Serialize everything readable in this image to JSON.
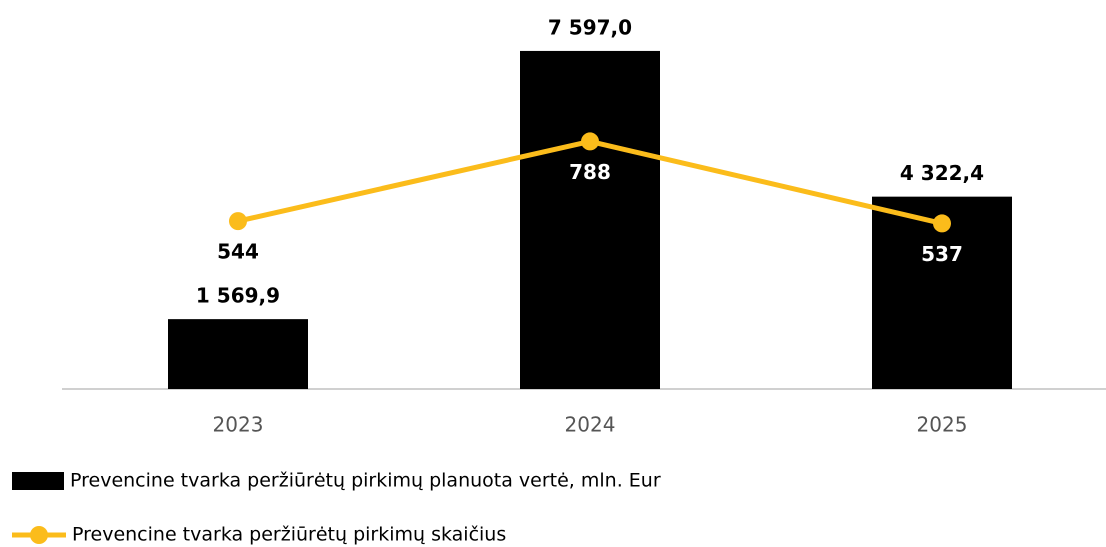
{
  "chart_data": {
    "type": "bar-line",
    "categories": [
      "2023",
      "2024",
      "2025"
    ],
    "series": [
      {
        "name": "Prevencine tvarka peržiūrėtų pirkimų planuota vertė, mln. Eur",
        "type": "bar",
        "color": "#000000",
        "values": [
          1569.9,
          7597.0,
          4322.4
        ],
        "value_labels": [
          "1 569,9",
          "7 597,0",
          "4 322,4"
        ]
      },
      {
        "name": "Prevencine tvarka peržiūrėtų pirkimų skaičius",
        "type": "line",
        "color": "#fbbc1b",
        "axis": "y2",
        "values": [
          544,
          788,
          537
        ]
      }
    ],
    "ylim": [
      0,
      8000
    ],
    "y2lim": [
      30,
      1120
    ],
    "legend": "bottom-left"
  }
}
